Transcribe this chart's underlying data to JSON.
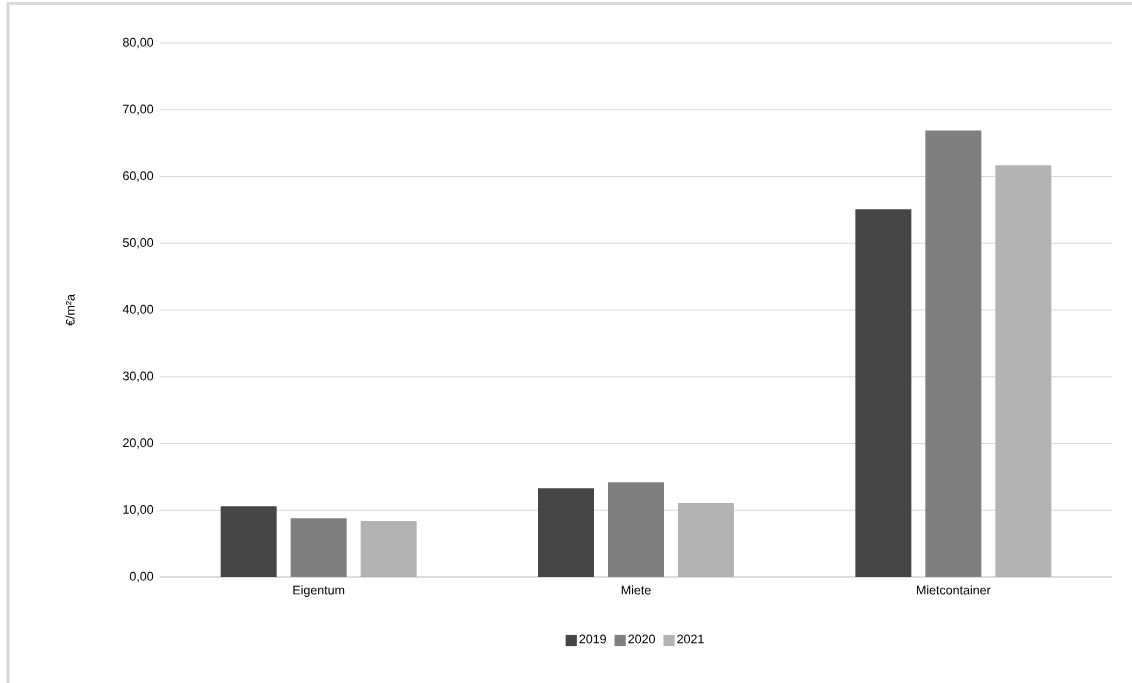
{
  "chart_data": {
    "type": "bar",
    "ylabel": "€/m²a",
    "categories": [
      "Eigentum",
      "Miete",
      "Mietcontainer"
    ],
    "series": [
      {
        "name": "2019",
        "color": "#464646",
        "values": [
          10.6,
          13.3,
          55.1
        ]
      },
      {
        "name": "2020",
        "color": "#7f7f7f",
        "values": [
          8.8,
          14.2,
          66.9
        ]
      },
      {
        "name": "2021",
        "color": "#b3b3b3",
        "values": [
          8.4,
          11.1,
          61.7
        ]
      }
    ],
    "ylim": [
      0,
      80
    ],
    "yticks": [
      {
        "value": 0,
        "label": "0,00"
      },
      {
        "value": 10,
        "label": "10,00"
      },
      {
        "value": 20,
        "label": "20,00"
      },
      {
        "value": 30,
        "label": "30,00"
      },
      {
        "value": 40,
        "label": "40,00"
      },
      {
        "value": 50,
        "label": "50,00"
      },
      {
        "value": 60,
        "label": "60,00"
      },
      {
        "value": 70,
        "label": "70,00"
      },
      {
        "value": 80,
        "label": "80,00"
      }
    ],
    "grid": "y",
    "legend": "bottom"
  }
}
